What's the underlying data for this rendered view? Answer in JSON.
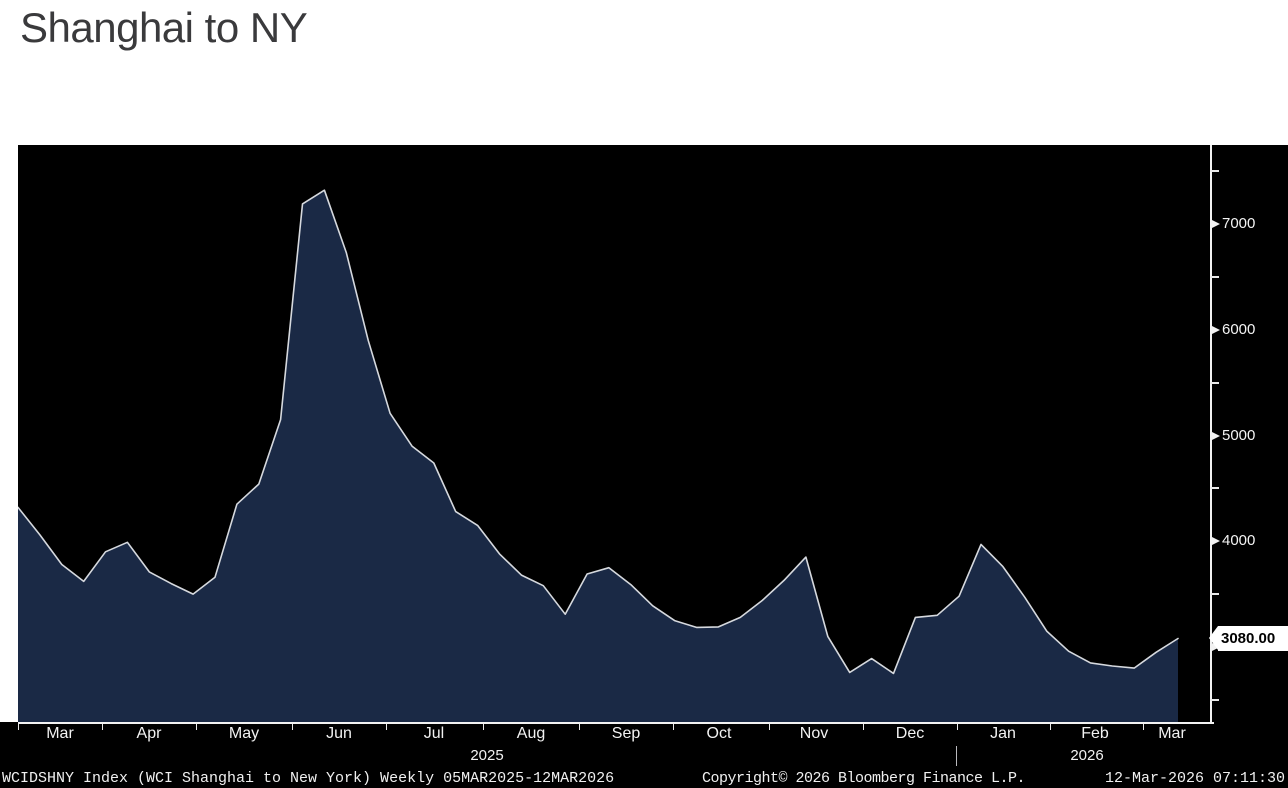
{
  "page": {
    "title": "Shanghai to NY"
  },
  "chart_data": {
    "type": "area",
    "title": "Shanghai to NY",
    "series_name": "WCIDSHNY Index (WCI Shanghai to New York)",
    "frequency": "Weekly",
    "period": "05MAR2025-12MAR2026",
    "x_month_labels": [
      "Mar",
      "Apr",
      "May",
      "Jun",
      "Jul",
      "Aug",
      "Sep",
      "Oct",
      "Nov",
      "Dec",
      "Jan",
      "Feb",
      "Mar"
    ],
    "x_year_labels": [
      "2025",
      "2026"
    ],
    "y_ticks": [
      7000,
      6000,
      5000,
      4000,
      3000
    ],
    "y_minor_ticks": [
      7500,
      6500,
      5500,
      4500,
      3500,
      2500
    ],
    "ylim": [
      2290,
      7750
    ],
    "grid": "off",
    "legend_position": "none",
    "last_value": "3080.00",
    "values": [
      4320,
      4060,
      3780,
      3620,
      3900,
      3990,
      3710,
      3600,
      3500,
      3660,
      4350,
      4540,
      5150,
      7190,
      7320,
      6730,
      5900,
      5210,
      4900,
      4740,
      4280,
      4150,
      3880,
      3680,
      3580,
      3310,
      3690,
      3750,
      3590,
      3390,
      3250,
      3185,
      3190,
      3280,
      3440,
      3630,
      3850,
      3100,
      2760,
      2890,
      2750,
      3280,
      3300,
      3480,
      3970,
      3760,
      3470,
      3150,
      2960,
      2850,
      2820,
      2800,
      2950,
      3080
    ]
  },
  "footer": {
    "ticker_text": "WCIDSHNY Index (WCI Shanghai to New York) Weekly 05MAR2025-12MAR2026",
    "copyright_text": "Copyright© 2026 Bloomberg Finance L.P.",
    "datetime_text": "12-Mar-2026 07:11:30"
  },
  "colors": {
    "page_bg": "#ffffff",
    "chart_bg": "#000000",
    "area_fill": "#1a2945",
    "line": "#d6d9de",
    "axis_text": "#f2f2f2",
    "title_text": "#3a3a3c",
    "last_box_bg": "#ffffff",
    "last_box_text": "#000000"
  }
}
